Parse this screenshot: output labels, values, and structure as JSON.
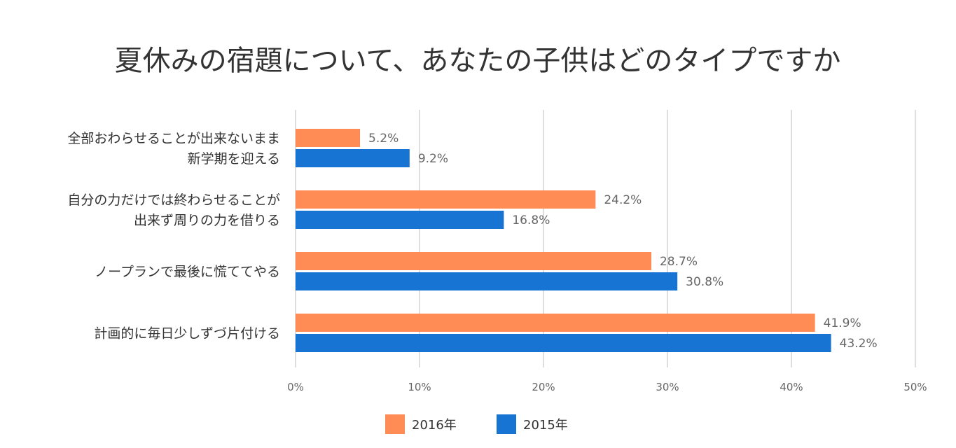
{
  "chart_data": {
    "type": "bar",
    "orientation": "horizontal",
    "title": "夏休みの宿題について、あなたの子供はどのタイプですか",
    "categories": [
      [
        "全部おわらせることが出来ないまま",
        "新学期を迎える"
      ],
      [
        "自分の力だけでは終わらせることが",
        "出来ず周りの力を借りる"
      ],
      [
        "ノープランで最後に慌ててやる"
      ],
      [
        "計画的に毎日少しずづ片付ける"
      ]
    ],
    "series": [
      {
        "name": "2016年",
        "color": "#ff8c55",
        "values": [
          5.2,
          24.2,
          28.7,
          41.9
        ],
        "labels": [
          "5.2%",
          "24.2%",
          "28.7%",
          "41.9%"
        ]
      },
      {
        "name": "2015年",
        "color": "#1874d2",
        "values": [
          9.2,
          16.8,
          30.8,
          43.2
        ],
        "labels": [
          "9.2%",
          "16.8%",
          "30.8%",
          "43.2%"
        ]
      }
    ],
    "xlim": [
      0,
      50
    ],
    "ticks": [
      0,
      10,
      20,
      30,
      40,
      50
    ],
    "tick_labels": [
      "0%",
      "10%",
      "20%",
      "30%",
      "40%",
      "50%"
    ],
    "grid": true,
    "legend_position": "bottom"
  }
}
